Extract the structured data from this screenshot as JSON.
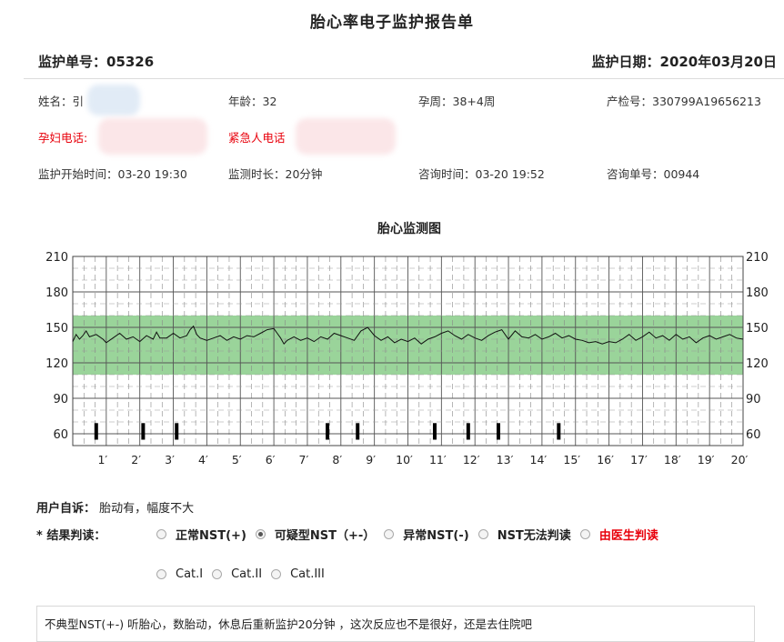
{
  "header": {
    "title": "胎心率电子监护报告单",
    "order_no": "监护单号：05326",
    "date": "监护日期：2020年03月20日"
  },
  "info": {
    "name_label": "姓名：",
    "name_value": "引",
    "age": "年龄：32",
    "gestation": "孕周：38+4周",
    "exam_no": "产检号：330799A19656213",
    "phone_label": "孕妇电话:",
    "emergency_label": "紧急人电话",
    "start_time": "监护开始时间：03-20 19:30",
    "duration": "监测时长：20分钟",
    "consult_time": "咨询时间：03-20 19:52",
    "consult_no": "咨询单号：00944"
  },
  "chart_data": {
    "type": "line",
    "title": "胎心监测图",
    "xlabel": "",
    "ylabel": "",
    "y_ticks": [
      "210",
      "180",
      "150",
      "120",
      "90",
      "60"
    ],
    "x_ticks": [
      "1′",
      "2′",
      "3′",
      "4′",
      "5′",
      "6′",
      "7′",
      "8′",
      "9′",
      "10′",
      "11′",
      "12′",
      "13′",
      "14′",
      "15′",
      "16′",
      "17′",
      "18′",
      "19′",
      "20′"
    ],
    "ylim": [
      50,
      210
    ],
    "xlim": [
      0,
      20
    ],
    "normal_band": [
      110,
      160
    ],
    "band_color": "#9ad49a",
    "movement_marks_minutes": [
      0.7,
      2.1,
      3.1,
      7.6,
      8.5,
      10.8,
      11.8,
      12.7,
      14.5
    ],
    "series": [
      {
        "values": [
          [
            0.0,
            138
          ],
          [
            0.1,
            144
          ],
          [
            0.2,
            140
          ],
          [
            0.3,
            143
          ],
          [
            0.4,
            147
          ],
          [
            0.5,
            142
          ],
          [
            0.7,
            144
          ],
          [
            0.9,
            140
          ],
          [
            1.0,
            137
          ],
          [
            1.2,
            141
          ],
          [
            1.4,
            145
          ],
          [
            1.6,
            140
          ],
          [
            1.8,
            142
          ],
          [
            2.0,
            138
          ],
          [
            2.2,
            143
          ],
          [
            2.4,
            140
          ],
          [
            2.5,
            146
          ],
          [
            2.6,
            141
          ],
          [
            2.8,
            141
          ],
          [
            3.0,
            145
          ],
          [
            3.2,
            141
          ],
          [
            3.4,
            143
          ],
          [
            3.5,
            148
          ],
          [
            3.6,
            151
          ],
          [
            3.7,
            144
          ],
          [
            3.8,
            141
          ],
          [
            4.0,
            139
          ],
          [
            4.2,
            141
          ],
          [
            4.4,
            143
          ],
          [
            4.6,
            139
          ],
          [
            4.8,
            142
          ],
          [
            5.0,
            140
          ],
          [
            5.2,
            143
          ],
          [
            5.4,
            142
          ],
          [
            5.6,
            145
          ],
          [
            5.8,
            148
          ],
          [
            6.0,
            149
          ],
          [
            6.1,
            145
          ],
          [
            6.2,
            141
          ],
          [
            6.3,
            136
          ],
          [
            6.4,
            139
          ],
          [
            6.6,
            142
          ],
          [
            6.8,
            139
          ],
          [
            7.0,
            141
          ],
          [
            7.2,
            138
          ],
          [
            7.4,
            142
          ],
          [
            7.6,
            140
          ],
          [
            7.8,
            145
          ],
          [
            8.0,
            143
          ],
          [
            8.2,
            141
          ],
          [
            8.4,
            139
          ],
          [
            8.6,
            147
          ],
          [
            8.8,
            150
          ],
          [
            9.0,
            143
          ],
          [
            9.2,
            139
          ],
          [
            9.4,
            142
          ],
          [
            9.6,
            137
          ],
          [
            9.8,
            140
          ],
          [
            10.0,
            138
          ],
          [
            10.2,
            141
          ],
          [
            10.4,
            136
          ],
          [
            10.6,
            140
          ],
          [
            10.8,
            142
          ],
          [
            11.0,
            145
          ],
          [
            11.2,
            147
          ],
          [
            11.4,
            143
          ],
          [
            11.6,
            140
          ],
          [
            11.8,
            144
          ],
          [
            12.0,
            141
          ],
          [
            12.2,
            139
          ],
          [
            12.4,
            143
          ],
          [
            12.6,
            146
          ],
          [
            12.8,
            148
          ],
          [
            13.0,
            140
          ],
          [
            13.2,
            147
          ],
          [
            13.4,
            142
          ],
          [
            13.6,
            141
          ],
          [
            13.8,
            144
          ],
          [
            14.0,
            140
          ],
          [
            14.2,
            142
          ],
          [
            14.4,
            145
          ],
          [
            14.6,
            141
          ],
          [
            14.8,
            143
          ],
          [
            15.0,
            140
          ],
          [
            15.2,
            139
          ],
          [
            15.4,
            137
          ],
          [
            15.6,
            138
          ],
          [
            15.8,
            136
          ],
          [
            16.0,
            138
          ],
          [
            16.2,
            137
          ],
          [
            16.4,
            140
          ],
          [
            16.6,
            144
          ],
          [
            16.8,
            139
          ],
          [
            17.0,
            142
          ],
          [
            17.2,
            146
          ],
          [
            17.4,
            141
          ],
          [
            17.6,
            143
          ],
          [
            17.8,
            139
          ],
          [
            18.0,
            144
          ],
          [
            18.2,
            140
          ],
          [
            18.4,
            142
          ],
          [
            18.6,
            137
          ],
          [
            18.8,
            141
          ],
          [
            19.0,
            143
          ],
          [
            19.2,
            140
          ],
          [
            19.4,
            142
          ],
          [
            19.6,
            144
          ],
          [
            19.8,
            141
          ],
          [
            20.0,
            140
          ]
        ]
      }
    ],
    "grid": true
  },
  "complaint": {
    "label": "用户自诉：",
    "text": "胎动有，幅度不大"
  },
  "result": {
    "label": "* 结果判读：",
    "options": [
      {
        "label": "正常NST(+)",
        "checked": false,
        "color": ""
      },
      {
        "label": "可疑型NST（+-）",
        "checked": true,
        "color": ""
      },
      {
        "label": "异常NST(-)",
        "checked": false,
        "color": ""
      },
      {
        "label": "NST无法判读",
        "checked": false,
        "color": ""
      },
      {
        "label": "由医生判读",
        "checked": false,
        "color": "#e8000b"
      }
    ],
    "categories": [
      {
        "label": "Cat.I",
        "checked": false
      },
      {
        "label": "Cat.II",
        "checked": false
      },
      {
        "label": "Cat.III",
        "checked": false
      }
    ]
  },
  "note": "不典型NST(+-) 听胎心，数胎动，休息后重新监护20分钟 ，这次反应也不是很好，还是去住院吧"
}
